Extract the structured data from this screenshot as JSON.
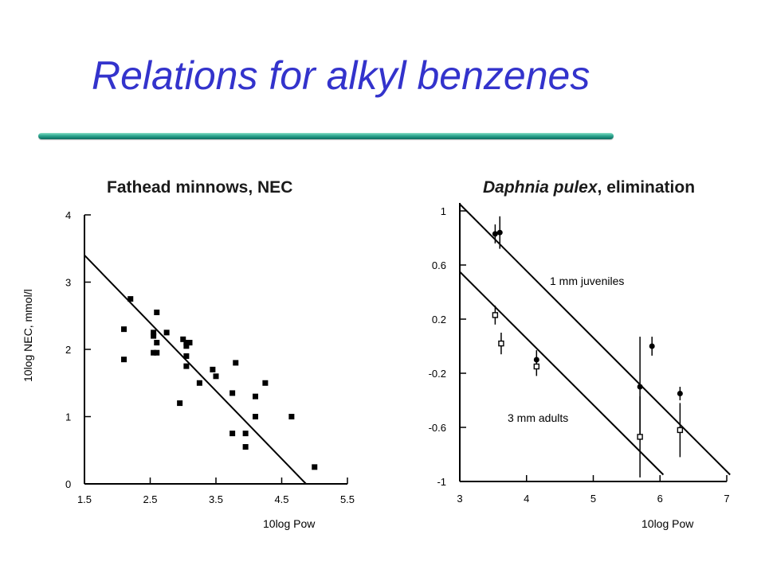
{
  "slide": {
    "title": "Relations for alkyl benzenes",
    "accent_color": "#3333cc",
    "divider_color": "#1a8a78"
  },
  "chart_data": [
    {
      "type": "scatter",
      "title": "Fathead minnows, NEC",
      "xlabel": "10log Pow",
      "ylabel": "10log NEC, mmol/l",
      "xlim": [
        1.5,
        5.5
      ],
      "ylim": [
        0,
        4
      ],
      "xticks": [
        "1.5",
        "2.5",
        "3.5",
        "4.5",
        "5.5"
      ],
      "yticks": [
        "0",
        "1",
        "2",
        "3",
        "4"
      ],
      "grid": false,
      "series": [
        {
          "points": [
            [
              2.2,
              2.75
            ],
            [
              2.1,
              2.3
            ],
            [
              2.1,
              1.85
            ],
            [
              2.55,
              2.25
            ],
            [
              2.55,
              2.2
            ],
            [
              2.6,
              2.55
            ],
            [
              2.6,
              2.1
            ],
            [
              2.6,
              1.95
            ],
            [
              2.55,
              1.95
            ],
            [
              2.75,
              2.25
            ],
            [
              3.0,
              2.15
            ],
            [
              3.05,
              2.1
            ],
            [
              3.05,
              2.05
            ],
            [
              3.1,
              2.1
            ],
            [
              3.05,
              1.9
            ],
            [
              3.05,
              1.75
            ],
            [
              2.95,
              1.2
            ],
            [
              3.25,
              1.5
            ],
            [
              3.45,
              1.7
            ],
            [
              3.5,
              1.6
            ],
            [
              3.75,
              1.35
            ],
            [
              3.8,
              1.8
            ],
            [
              3.75,
              0.75
            ],
            [
              3.95,
              0.75
            ],
            [
              3.95,
              0.55
            ],
            [
              4.1,
              1.3
            ],
            [
              4.1,
              1.0
            ],
            [
              4.25,
              1.5
            ],
            [
              4.65,
              1.0
            ],
            [
              5.0,
              0.25
            ]
          ]
        }
      ],
      "fit_line": {
        "x": [
          1.5,
          4.87
        ],
        "y": [
          3.4,
          0
        ]
      }
    },
    {
      "type": "scatter",
      "title": "Daphnia pulex, elimination",
      "title_species": "Daphnia pulex",
      "title_rest": ", elimination",
      "xlabel": "10log Pow",
      "xlim": [
        3,
        7
      ],
      "ylim": [
        -1,
        1
      ],
      "xticks": [
        "3",
        "4",
        "5",
        "6",
        "7"
      ],
      "yticks": [
        "1",
        "0.6",
        "0.2",
        "-0.2",
        "-0.6",
        "-1"
      ],
      "grid": false,
      "series": [
        {
          "name": "1 mm juveniles",
          "marker": "filled-circle",
          "points": [
            {
              "x": 3.53,
              "y": 0.83,
              "err": 0.07
            },
            {
              "x": 3.6,
              "y": 0.84,
              "err": 0.12
            },
            {
              "x": 4.15,
              "y": -0.1,
              "err": 0.07
            },
            {
              "x": 5.7,
              "y": -0.3,
              "err": 0.37
            },
            {
              "x": 5.88,
              "y": 0.0,
              "err": 0.07
            },
            {
              "x": 6.3,
              "y": -0.35,
              "err": 0.05
            }
          ],
          "fit_line": {
            "x": [
              3.0,
              7.05
            ],
            "y": [
              1.05,
              -0.95
            ]
          }
        },
        {
          "name": "3 mm adults",
          "marker": "open-square",
          "points": [
            {
              "x": 3.53,
              "y": 0.23,
              "err": 0.07
            },
            {
              "x": 3.62,
              "y": 0.02,
              "err": 0.08
            },
            {
              "x": 4.15,
              "y": -0.15,
              "err": 0.07
            },
            {
              "x": 5.7,
              "y": -0.67,
              "err": 0.3
            },
            {
              "x": 6.3,
              "y": -0.62,
              "err": 0.2
            }
          ],
          "fit_line": {
            "x": [
              3.0,
              6.05
            ],
            "y": [
              0.55,
              -0.95
            ]
          }
        }
      ]
    }
  ]
}
